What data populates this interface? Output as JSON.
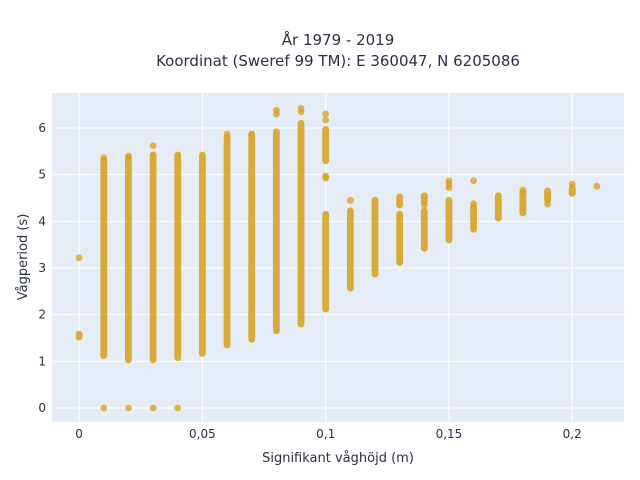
{
  "chart_data": {
    "type": "scatter",
    "title_line1": "År 1979 - 2019",
    "title_line2": "Koordinat (Sweref 99 TM): E 360047, N 6205086",
    "xlabel": "Signifikant våghöjd (m)",
    "ylabel": "Vågperiod (s)",
    "xlim": [
      -0.011,
      0.221
    ],
    "ylim": [
      -0.3,
      6.75
    ],
    "x_ticks": [
      0,
      0.05,
      0.1,
      0.15,
      0.2
    ],
    "x_tick_labels": [
      "0",
      "0,05",
      "0,1",
      "0,15",
      "0,2"
    ],
    "y_ticks": [
      0,
      1,
      2,
      3,
      4,
      5,
      6
    ],
    "y_tick_labels": [
      "0",
      "1",
      "2",
      "3",
      "4",
      "5",
      "6"
    ],
    "grid": true,
    "colors": {
      "marker": "#d4a017",
      "plot_bg": "#e5ecf6",
      "grid": "#ffffff"
    },
    "columns": [
      {
        "x": 0.0,
        "ranges": [
          [
            1.52,
            1.58
          ]
        ],
        "points": [
          3.22
        ]
      },
      {
        "x": 0.01,
        "ranges": [
          [
            1.12,
            5.3
          ]
        ],
        "points": [
          0.0,
          5.36
        ]
      },
      {
        "x": 0.02,
        "ranges": [
          [
            1.03,
            5.35
          ]
        ],
        "points": [
          0.0,
          5.4
        ]
      },
      {
        "x": 0.03,
        "ranges": [
          [
            1.03,
            5.42
          ]
        ],
        "points": [
          0.0,
          5.62
        ]
      },
      {
        "x": 0.04,
        "ranges": [
          [
            1.08,
            5.42
          ]
        ],
        "points": [
          0.0
        ]
      },
      {
        "x": 0.05,
        "ranges": [
          [
            1.17,
            5.42
          ]
        ],
        "points": []
      },
      {
        "x": 0.06,
        "ranges": [
          [
            1.35,
            5.8
          ]
        ],
        "points": [
          5.87
        ]
      },
      {
        "x": 0.07,
        "ranges": [
          [
            1.47,
            5.87
          ]
        ],
        "points": []
      },
      {
        "x": 0.08,
        "ranges": [
          [
            1.65,
            5.92
          ]
        ],
        "points": [
          6.3,
          6.38
        ]
      },
      {
        "x": 0.09,
        "ranges": [
          [
            1.8,
            6.1
          ]
        ],
        "points": [
          6.35,
          6.42
        ]
      },
      {
        "x": 0.1,
        "ranges": [
          [
            2.12,
            4.15
          ],
          [
            5.3,
            5.97
          ]
        ],
        "points": [
          4.93,
          4.97,
          6.17,
          6.3
        ]
      },
      {
        "x": 0.11,
        "ranges": [
          [
            2.57,
            4.22
          ]
        ],
        "points": [
          4.45
        ]
      },
      {
        "x": 0.12,
        "ranges": [
          [
            2.87,
            4.45
          ]
        ],
        "points": []
      },
      {
        "x": 0.13,
        "ranges": [
          [
            3.12,
            4.15
          ],
          [
            4.35,
            4.52
          ]
        ],
        "points": []
      },
      {
        "x": 0.14,
        "ranges": [
          [
            3.42,
            4.22
          ],
          [
            4.42,
            4.55
          ]
        ],
        "points": [
          4.35
        ]
      },
      {
        "x": 0.15,
        "ranges": [
          [
            3.6,
            4.45
          ]
        ],
        "points": [
          4.72,
          4.8,
          4.87
        ]
      },
      {
        "x": 0.16,
        "ranges": [
          [
            3.83,
            4.3
          ]
        ],
        "points": [
          4.38,
          4.87
        ]
      },
      {
        "x": 0.17,
        "ranges": [
          [
            4.07,
            4.55
          ]
        ],
        "points": []
      },
      {
        "x": 0.18,
        "ranges": [
          [
            4.18,
            4.62
          ]
        ],
        "points": [
          4.67
        ]
      },
      {
        "x": 0.19,
        "ranges": [
          [
            4.45,
            4.65
          ]
        ],
        "points": [
          4.37
        ]
      },
      {
        "x": 0.2,
        "ranges": [
          [
            4.6,
            4.72
          ]
        ],
        "points": [
          4.8
        ]
      },
      {
        "x": 0.21,
        "ranges": [],
        "points": [
          4.75
        ]
      }
    ]
  }
}
